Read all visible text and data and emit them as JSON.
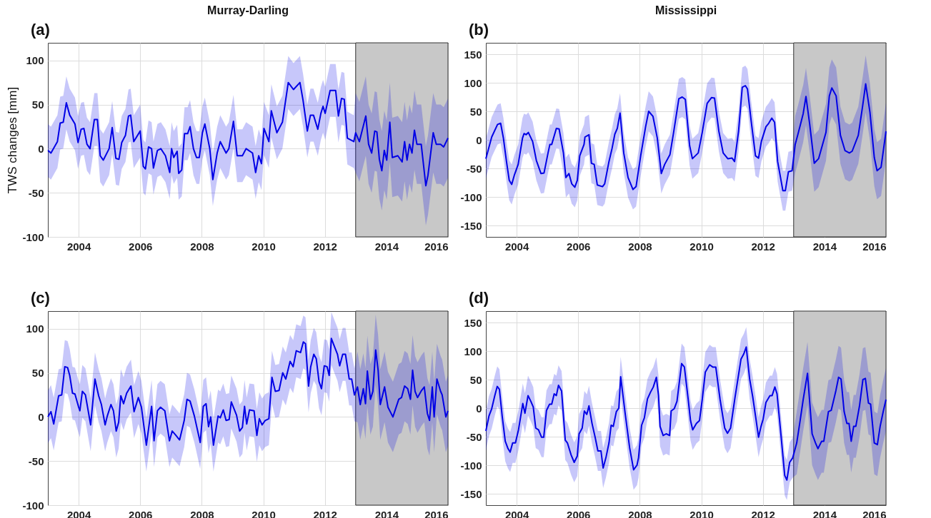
{
  "chart_data": [
    {
      "type": "line",
      "title": "Murray-Darling",
      "ylabel": "TWS changes [mm]",
      "annotations": [
        "(a)"
      ],
      "xlim": [
        2003,
        2016
      ],
      "xticks": [
        2004,
        2006,
        2008,
        2010,
        2012,
        2014,
        2016
      ],
      "ylim": [
        -100,
        120
      ],
      "yticks": [
        -100,
        -50,
        0,
        50,
        100
      ],
      "grid": true,
      "bands": [
        {
          "axis": "x",
          "from": 2013,
          "to": 2016,
          "color": "#c8c8c8"
        }
      ],
      "series": [
        {
          "color": "#0000e6",
          "x": [
            2003.0,
            2003.1,
            2003.31,
            2003.4,
            2003.5,
            2003.6,
            2003.71,
            2003.88,
            2003.98,
            2004.08,
            2004.17,
            2004.27,
            2004.37,
            2004.51,
            2004.61,
            2004.7,
            2004.8,
            2004.99,
            2005.09,
            2005.21,
            2005.31,
            2005.4,
            2005.52,
            2005.62,
            2005.69,
            2005.79,
            2006.0,
            2006.1,
            2006.17,
            2006.27,
            2006.37,
            2006.43,
            2006.56,
            2006.67,
            2006.82,
            2006.96,
            2007.02,
            2007.09,
            2007.2,
            2007.25,
            2007.35,
            2007.44,
            2007.54,
            2007.62,
            2007.73,
            2007.83,
            2007.92,
            2008.02,
            2008.1,
            2008.26,
            2008.36,
            2008.5,
            2008.6,
            2008.79,
            2008.88,
            2009.03,
            2009.15,
            2009.32,
            2009.44,
            2009.65,
            2009.75,
            2009.85,
            2009.94,
            2010.02,
            2010.18,
            2010.26,
            2010.44,
            2010.62,
            2010.81,
            2010.98,
            2011.19,
            2011.29,
            2011.43,
            2011.53,
            2011.63,
            2011.77,
            2011.87,
            2011.94,
            2012.01,
            2012.17,
            2012.35,
            2012.44,
            2012.54,
            2012.63,
            2012.73,
            2012.94,
            2013.0,
            2013.12,
            2013.33,
            2013.42,
            2013.52,
            2013.62,
            2013.69,
            2013.77,
            2013.85,
            2013.93,
            2014.01,
            2014.11,
            2014.19,
            2014.37,
            2014.51,
            2014.59,
            2014.67,
            2014.75,
            2014.83,
            2014.91,
            2014.99,
            2015.13,
            2015.28,
            2015.35,
            2015.52,
            2015.62,
            2015.76,
            2015.86,
            2016.0
          ],
          "values": [
            -2,
            -5,
            8,
            29,
            30,
            52,
            38,
            28,
            7,
            22,
            23,
            5,
            0,
            33,
            33,
            -8,
            -13,
            0,
            24,
            -11,
            -12,
            7,
            15,
            37,
            38,
            8,
            20,
            -20,
            -23,
            2,
            0,
            -22,
            -2,
            0,
            -8,
            -27,
            0,
            -10,
            -3,
            -28,
            -24,
            17,
            17,
            25,
            0,
            -10,
            -10,
            18,
            28,
            0,
            -35,
            -5,
            8,
            -5,
            0,
            31,
            -8,
            -8,
            0,
            -5,
            -27,
            -8,
            -17,
            23,
            8,
            43,
            18,
            30,
            75,
            67,
            75,
            55,
            20,
            38,
            38,
            22,
            40,
            48,
            40,
            66,
            66,
            37,
            57,
            56,
            12,
            8,
            18,
            8,
            37,
            5,
            -5,
            20,
            19,
            -12,
            -25,
            -2,
            -13,
            30,
            -10,
            -8,
            -15,
            8,
            -13,
            5,
            -5,
            21,
            5,
            5,
            -42,
            -30,
            18,
            5,
            5,
            2,
            12
          ],
          "lower": [
            -32,
            -35,
            -22,
            -1,
            0,
            22,
            8,
            -2,
            -23,
            -8,
            -7,
            -25,
            -30,
            3,
            3,
            -38,
            -43,
            -30,
            -6,
            -41,
            -42,
            -23,
            -15,
            7,
            8,
            -22,
            -10,
            -50,
            -53,
            -28,
            -30,
            -52,
            -32,
            -30,
            -38,
            -57,
            -30,
            -40,
            -33,
            -58,
            -54,
            -13,
            -13,
            -5,
            -30,
            -40,
            -40,
            -12,
            -2,
            -30,
            -65,
            -35,
            -22,
            -35,
            -30,
            1,
            -38,
            -38,
            -30,
            -35,
            -57,
            -38,
            -47,
            -7,
            -22,
            13,
            -12,
            0,
            45,
            37,
            45,
            25,
            -10,
            8,
            8,
            -8,
            10,
            18,
            10,
            36,
            36,
            7,
            27,
            26,
            -18,
            -22,
            -27,
            -37,
            -8,
            -40,
            -50,
            -25,
            -26,
            -57,
            -70,
            -47,
            -58,
            -15,
            -55,
            -53,
            -60,
            -37,
            -58,
            -40,
            -50,
            -24,
            -40,
            -40,
            -87,
            -75,
            -27,
            -40,
            -40,
            -43,
            -33
          ],
          "upper": [
            28,
            25,
            38,
            59,
            60,
            82,
            68,
            58,
            37,
            52,
            53,
            35,
            30,
            63,
            63,
            22,
            17,
            30,
            54,
            19,
            18,
            37,
            45,
            67,
            68,
            38,
            50,
            10,
            7,
            32,
            30,
            8,
            28,
            30,
            22,
            3,
            30,
            20,
            27,
            2,
            6,
            47,
            47,
            55,
            30,
            20,
            20,
            48,
            58,
            30,
            -5,
            25,
            38,
            25,
            30,
            61,
            22,
            22,
            30,
            25,
            3,
            22,
            13,
            53,
            38,
            73,
            48,
            60,
            105,
            97,
            105,
            85,
            50,
            68,
            68,
            52,
            70,
            78,
            70,
            96,
            96,
            67,
            87,
            86,
            42,
            38,
            63,
            53,
            82,
            50,
            40,
            65,
            64,
            33,
            20,
            43,
            32,
            75,
            35,
            37,
            30,
            53,
            32,
            50,
            40,
            66,
            50,
            50,
            3,
            15,
            63,
            50,
            50,
            47,
            57
          ]
        }
      ]
    },
    {
      "type": "line",
      "title": "Mississippi",
      "annotations": [
        "(b)"
      ],
      "xlim": [
        2003,
        2016
      ],
      "xticks": [
        2004,
        2006,
        2008,
        2010,
        2012,
        2014,
        2016
      ],
      "ylim": [
        -170,
        170
      ],
      "yticks": [
        -150,
        -100,
        -50,
        0,
        50,
        100,
        150
      ],
      "grid": true,
      "bands": [
        {
          "axis": "x",
          "from": 2013,
          "to": 2016,
          "color": "#c8c8c8"
        }
      ],
      "series": [
        {
          "color": "#0000e6",
          "x": [
            2003.0,
            2003.19,
            2003.38,
            2003.48,
            2003.57,
            2003.67,
            2003.76,
            2003.84,
            2003.93,
            2004.05,
            2004.19,
            2004.24,
            2004.31,
            2004.38,
            2004.52,
            2004.64,
            2004.79,
            2004.89,
            2005.02,
            2005.08,
            2005.14,
            2005.29,
            2005.38,
            2005.52,
            2005.6,
            2005.7,
            2005.79,
            2005.89,
            2005.97,
            2006.05,
            2006.19,
            2006.22,
            2006.35,
            2006.43,
            2006.52,
            2006.62,
            2006.79,
            2006.86,
            2007.0,
            2007.1,
            2007.19,
            2007.27,
            2007.36,
            2007.48,
            2007.62,
            2007.78,
            2007.88,
            2008.03,
            2008.19,
            2008.29,
            2008.43,
            2008.57,
            2008.7,
            2008.81,
            2008.98,
            2009.1,
            2009.27,
            2009.38,
            2009.48,
            2009.62,
            2009.71,
            2009.9,
            2010.03,
            2010.19,
            2010.33,
            2010.43,
            2010.57,
            2010.71,
            2010.86,
            2011.0,
            2011.08,
            2011.21,
            2011.33,
            2011.43,
            2011.5,
            2011.62,
            2011.76,
            2011.86,
            2011.95,
            2012.1,
            2012.19,
            2012.29,
            2012.38,
            2012.48,
            2012.65,
            2012.73,
            2012.83,
            2012.95,
            2013.05,
            2013.14,
            2013.24,
            2013.31,
            2013.4,
            2013.52,
            2013.67,
            2013.81,
            2013.93,
            2014.05,
            2014.16,
            2014.24,
            2014.38,
            2014.52,
            2014.67,
            2014.81,
            2014.9,
            2015.1,
            2015.24,
            2015.34,
            2015.48,
            2015.62,
            2015.71,
            2015.84,
            2016.0
          ],
          "values": [
            -33,
            5,
            27,
            29,
            3,
            -38,
            -71,
            -78,
            -61,
            -43,
            3,
            11,
            9,
            13,
            -3,
            -36,
            -59,
            -58,
            -23,
            -8,
            -8,
            20,
            19,
            -23,
            -66,
            -59,
            -77,
            -83,
            -71,
            -28,
            -8,
            5,
            9,
            -41,
            -43,
            -79,
            -82,
            -77,
            -38,
            -15,
            10,
            20,
            47,
            -23,
            -66,
            -87,
            -82,
            -28,
            23,
            50,
            41,
            3,
            -59,
            -43,
            -26,
            13,
            72,
            75,
            71,
            -10,
            -33,
            -23,
            13,
            64,
            74,
            73,
            15,
            -23,
            -33,
            -32,
            -38,
            15,
            92,
            95,
            89,
            33,
            -28,
            -32,
            -3,
            23,
            29,
            38,
            31,
            -38,
            -89,
            -89,
            -56,
            -54,
            -8,
            10,
            31,
            46,
            76,
            28,
            -41,
            -33,
            -10,
            13,
            77,
            91,
            77,
            8,
            -19,
            -23,
            -20,
            8,
            59,
            98,
            48,
            -31,
            -54,
            -48,
            15
          ],
          "lower": [
            -68,
            -30,
            -8,
            -6,
            -32,
            -73,
            -106,
            -113,
            -96,
            -78,
            -32,
            -24,
            -26,
            -22,
            -38,
            -71,
            -94,
            -93,
            -58,
            -43,
            -43,
            -15,
            -16,
            -58,
            -101,
            -94,
            -112,
            -118,
            -106,
            -63,
            -43,
            -30,
            -26,
            -76,
            -78,
            -114,
            -117,
            -112,
            -73,
            -50,
            -25,
            -15,
            12,
            -58,
            -101,
            -122,
            -117,
            -63,
            -12,
            15,
            6,
            -32,
            -94,
            -78,
            -61,
            -22,
            37,
            40,
            36,
            -45,
            -68,
            -58,
            -22,
            29,
            39,
            38,
            -20,
            -58,
            -68,
            -67,
            -73,
            -20,
            57,
            60,
            54,
            -2,
            -63,
            -67,
            -38,
            -12,
            -6,
            3,
            -4,
            -73,
            -124,
            -124,
            -91,
            -89,
            -58,
            -40,
            -19,
            -4,
            26,
            -22,
            -91,
            -83,
            -60,
            -37,
            27,
            41,
            27,
            -42,
            -69,
            -73,
            -70,
            -42,
            9,
            48,
            -2,
            -81,
            -104,
            -98,
            -35
          ],
          "upper": [
            2,
            40,
            62,
            64,
            38,
            -3,
            -36,
            -43,
            -26,
            -8,
            38,
            46,
            44,
            48,
            32,
            -1,
            -24,
            -23,
            12,
            27,
            27,
            55,
            54,
            12,
            -31,
            -24,
            -42,
            -48,
            -36,
            7,
            27,
            40,
            44,
            -6,
            -8,
            -44,
            -47,
            -42,
            -3,
            20,
            45,
            55,
            82,
            12,
            -31,
            -52,
            -47,
            7,
            58,
            85,
            76,
            38,
            -24,
            -8,
            9,
            48,
            107,
            110,
            106,
            25,
            2,
            12,
            48,
            99,
            109,
            108,
            50,
            12,
            2,
            3,
            -3,
            50,
            127,
            130,
            124,
            68,
            7,
            3,
            32,
            58,
            64,
            73,
            66,
            -3,
            -54,
            -54,
            -21,
            -19,
            42,
            60,
            81,
            96,
            126,
            78,
            9,
            17,
            40,
            63,
            127,
            141,
            127,
            58,
            31,
            27,
            30,
            58,
            109,
            148,
            98,
            19,
            -4,
            2,
            65
          ]
        }
      ]
    },
    {
      "type": "line",
      "annotations": [
        "(c)"
      ],
      "xlim": [
        2003,
        2016
      ],
      "xticks": [
        2004,
        2006,
        2008,
        2010,
        2012,
        2014,
        2016
      ],
      "ylim": [
        -100,
        120
      ],
      "yticks": [
        -100,
        -50,
        0,
        50,
        100
      ],
      "grid": true,
      "bands": [
        {
          "axis": "x",
          "from": 2013,
          "to": 2016,
          "color": "#c8c8c8"
        }
      ],
      "series": [
        {
          "color": "#0000e6",
          "x": [
            2003.0,
            2003.1,
            2003.19,
            2003.35,
            2003.45,
            2003.55,
            2003.64,
            2003.71,
            2003.8,
            2003.88,
            2004.0,
            2004.04,
            2004.12,
            2004.22,
            2004.31,
            2004.39,
            2004.53,
            2004.65,
            2004.74,
            2004.86,
            2004.93,
            2005.05,
            2005.13,
            2005.22,
            2005.3,
            2005.37,
            2005.46,
            2005.56,
            2005.7,
            2005.8,
            2005.94,
            2006.04,
            2006.2,
            2006.37,
            2006.45,
            2006.56,
            2006.66,
            2006.8,
            2006.95,
            2007.04,
            2007.14,
            2007.28,
            2007.43,
            2007.52,
            2007.62,
            2007.76,
            2007.95,
            2008.05,
            2008.14,
            2008.22,
            2008.29,
            2008.38,
            2008.53,
            2008.6,
            2008.7,
            2008.79,
            2008.89,
            2008.96,
            2009.13,
            2009.23,
            2009.32,
            2009.39,
            2009.46,
            2009.55,
            2009.7,
            2009.79,
            2009.87,
            2009.96,
            2010.06,
            2010.18,
            2010.28,
            2010.39,
            2010.51,
            2010.63,
            2010.73,
            2010.87,
            2010.97,
            2011.07,
            2011.21,
            2011.3,
            2011.37,
            2011.47,
            2011.54,
            2011.64,
            2011.72,
            2011.81,
            2011.89,
            2011.98,
            2012.07,
            2012.14,
            2012.21,
            2012.33,
            2012.41,
            2012.48,
            2012.58,
            2012.67,
            2012.79,
            2012.87,
            2012.96,
            2013.06,
            2013.15,
            2013.25,
            2013.32,
            2013.38,
            2013.48,
            2013.56,
            2013.65,
            2013.73,
            2013.8,
            2013.94,
            2014.05,
            2014.21,
            2014.4,
            2014.49,
            2014.59,
            2014.69,
            2014.78,
            2014.85,
            2014.93,
            2015.01,
            2015.14,
            2015.23,
            2015.33,
            2015.4,
            2015.49,
            2015.55,
            2015.64,
            2015.76,
            2015.81,
            2015.93,
            2016.0
          ],
          "values": [
            0,
            6,
            -8,
            24,
            25,
            57,
            56,
            47,
            27,
            26,
            11,
            7,
            29,
            25,
            7,
            -9,
            43,
            24,
            14,
            -9,
            1,
            14,
            7,
            -16,
            -6,
            24,
            15,
            27,
            35,
            6,
            22,
            11,
            -32,
            12,
            -27,
            7,
            11,
            7,
            -27,
            -16,
            -20,
            -26,
            -4,
            20,
            18,
            1,
            -29,
            12,
            15,
            -11,
            0,
            -32,
            1,
            -1,
            8,
            -4,
            -3,
            17,
            2,
            -16,
            -12,
            12,
            -8,
            8,
            7,
            -21,
            -2,
            -9,
            -4,
            -2,
            45,
            29,
            30,
            50,
            43,
            63,
            57,
            75,
            73,
            85,
            83,
            35,
            57,
            71,
            66,
            40,
            32,
            58,
            57,
            47,
            89,
            78,
            71,
            58,
            71,
            71,
            43,
            43,
            25,
            34,
            14,
            32,
            15,
            52,
            20,
            29,
            76,
            53,
            14,
            34,
            11,
            0,
            20,
            22,
            35,
            32,
            20,
            53,
            29,
            22,
            30,
            34,
            4,
            -4,
            34,
            0,
            43,
            29,
            25,
            0,
            7
          ],
          "lower": [
            -30,
            -24,
            -38,
            -6,
            -5,
            27,
            26,
            17,
            -3,
            -4,
            -19,
            -23,
            -1,
            -5,
            -23,
            -39,
            13,
            -6,
            -16,
            -39,
            -29,
            -16,
            -23,
            -46,
            -36,
            -6,
            -15,
            -3,
            5,
            -24,
            -8,
            -19,
            -62,
            -18,
            -57,
            -23,
            -19,
            -23,
            -57,
            -46,
            -50,
            -56,
            -34,
            -10,
            -12,
            -29,
            -59,
            -18,
            -15,
            -41,
            -30,
            -62,
            -29,
            -31,
            -22,
            -34,
            -33,
            -13,
            -28,
            -46,
            -42,
            -18,
            -38,
            -22,
            -23,
            -51,
            -32,
            -39,
            -34,
            -32,
            15,
            -1,
            0,
            20,
            13,
            33,
            27,
            45,
            43,
            55,
            53,
            5,
            27,
            41,
            36,
            10,
            2,
            28,
            27,
            17,
            59,
            48,
            41,
            28,
            41,
            41,
            13,
            13,
            -5,
            -6,
            -26,
            -8,
            -25,
            12,
            -20,
            -11,
            36,
            13,
            -26,
            -6,
            -29,
            -40,
            -20,
            -18,
            -5,
            -8,
            -20,
            13,
            -11,
            -18,
            -10,
            -6,
            -36,
            -44,
            -6,
            -40,
            3,
            -11,
            -15,
            -40,
            -33
          ],
          "upper": [
            30,
            36,
            22,
            54,
            55,
            87,
            86,
            77,
            57,
            56,
            41,
            37,
            59,
            55,
            37,
            21,
            73,
            54,
            44,
            21,
            31,
            44,
            37,
            14,
            24,
            54,
            45,
            57,
            65,
            36,
            52,
            41,
            -2,
            42,
            3,
            37,
            41,
            37,
            3,
            14,
            10,
            4,
            26,
            50,
            48,
            31,
            1,
            42,
            45,
            19,
            30,
            -2,
            31,
            29,
            38,
            26,
            27,
            47,
            32,
            14,
            18,
            42,
            22,
            38,
            37,
            9,
            28,
            21,
            26,
            28,
            75,
            59,
            60,
            80,
            73,
            93,
            87,
            105,
            103,
            115,
            113,
            65,
            87,
            101,
            96,
            70,
            62,
            88,
            87,
            77,
            119,
            108,
            101,
            88,
            101,
            101,
            73,
            73,
            55,
            74,
            54,
            72,
            55,
            92,
            60,
            69,
            116,
            93,
            54,
            74,
            51,
            40,
            60,
            62,
            75,
            72,
            60,
            93,
            69,
            62,
            70,
            74,
            44,
            36,
            74,
            40,
            83,
            69,
            65,
            40,
            47
          ]
        }
      ]
    },
    {
      "type": "line",
      "annotations": [
        "(d)"
      ],
      "xlim": [
        2003,
        2016
      ],
      "xticks": [
        2004,
        2006,
        2008,
        2010,
        2012,
        2014,
        2016
      ],
      "ylim": [
        -170,
        170
      ],
      "yticks": [
        -150,
        -100,
        -50,
        0,
        50,
        100,
        150
      ],
      "grid": true,
      "bands": [
        {
          "axis": "x",
          "from": 2013,
          "to": 2016,
          "color": "#c8c8c8"
        }
      ],
      "series": [
        {
          "color": "#0000e6",
          "x": [
            2003.0,
            2003.1,
            2003.19,
            2003.29,
            2003.37,
            2003.44,
            2003.53,
            2003.63,
            2003.72,
            2003.79,
            2003.87,
            2003.96,
            2004.06,
            2004.2,
            2004.27,
            2004.37,
            2004.46,
            2004.54,
            2004.62,
            2004.71,
            2004.81,
            2004.88,
            2004.97,
            2005.07,
            2005.14,
            2005.22,
            2005.29,
            2005.36,
            2005.46,
            2005.58,
            2005.65,
            2005.77,
            2005.87,
            2005.97,
            2006.03,
            2006.13,
            2006.2,
            2006.28,
            2006.35,
            2006.45,
            2006.55,
            2006.64,
            2006.74,
            2006.81,
            2006.9,
            2007.0,
            2007.07,
            2007.14,
            2007.24,
            2007.32,
            2007.38,
            2007.53,
            2007.67,
            2007.8,
            2007.91,
            2007.96,
            2008.06,
            2008.15,
            2008.25,
            2008.35,
            2008.44,
            2008.54,
            2008.61,
            2008.66,
            2008.76,
            2008.86,
            2008.97,
            2009.02,
            2009.12,
            2009.21,
            2009.36,
            2009.45,
            2009.57,
            2009.65,
            2009.72,
            2009.84,
            2009.94,
            2010.03,
            2010.13,
            2010.27,
            2010.37,
            2010.47,
            2010.61,
            2010.76,
            2010.85,
            2010.95,
            2011.09,
            2011.29,
            2011.38,
            2011.46,
            2011.57,
            2011.67,
            2011.77,
            2011.86,
            2011.94,
            2012.01,
            2012.1,
            2012.23,
            2012.3,
            2012.39,
            2012.46,
            2012.59,
            2012.71,
            2012.78,
            2012.87,
            2012.97,
            2013.1,
            2013.21,
            2013.31,
            2013.45,
            2013.6,
            2013.71,
            2013.79,
            2013.91,
            2013.98,
            2014.13,
            2014.22,
            2014.37,
            2014.46,
            2014.54,
            2014.64,
            2014.73,
            2014.8,
            2014.87,
            2014.95,
            2015.02,
            2015.14,
            2015.25,
            2015.33,
            2015.43,
            2015.5,
            2015.62,
            2015.72,
            2015.81,
            2015.91,
            2016.0
          ],
          "values": [
            -40,
            -14,
            -1,
            22,
            38,
            33,
            -14,
            -58,
            -71,
            -77,
            -61,
            -61,
            -38,
            8,
            -9,
            22,
            12,
            2,
            -35,
            -38,
            -51,
            -51,
            -4,
            7,
            7,
            25,
            22,
            40,
            30,
            -56,
            -61,
            -82,
            -95,
            -84,
            -45,
            -35,
            -5,
            -11,
            4,
            -27,
            -51,
            -75,
            -75,
            -105,
            -87,
            -61,
            -30,
            -32,
            -6,
            0,
            55,
            -11,
            -69,
            -108,
            -100,
            -87,
            -30,
            -17,
            16,
            28,
            37,
            54,
            22,
            -32,
            -48,
            -45,
            -48,
            -5,
            -1,
            12,
            78,
            72,
            17,
            -22,
            -38,
            -27,
            -22,
            15,
            63,
            76,
            72,
            72,
            15,
            -35,
            -44,
            -35,
            17,
            86,
            95,
            107,
            51,
            20,
            -17,
            -51,
            -32,
            -19,
            10,
            22,
            22,
            37,
            25,
            -48,
            -118,
            -126,
            -95,
            -87,
            -61,
            -22,
            15,
            61,
            -45,
            -61,
            -71,
            -58,
            -58,
            -6,
            -4,
            30,
            54,
            51,
            -6,
            -27,
            -27,
            -58,
            -32,
            -32,
            4,
            50,
            52,
            9,
            7,
            -61,
            -64,
            -32,
            -6,
            15
          ],
          "lower": [
            -75,
            -49,
            -36,
            -13,
            3,
            -2,
            -49,
            -93,
            -106,
            -112,
            -96,
            -96,
            -73,
            -27,
            -44,
            -13,
            -23,
            -33,
            -70,
            -73,
            -86,
            -86,
            -39,
            -28,
            -28,
            -10,
            -13,
            5,
            -5,
            -91,
            -96,
            -117,
            -130,
            -119,
            -80,
            -70,
            -40,
            -46,
            -31,
            -62,
            -86,
            -110,
            -110,
            -140,
            -122,
            -96,
            -65,
            -67,
            -41,
            -35,
            20,
            -46,
            -104,
            -143,
            -135,
            -122,
            -65,
            -52,
            -19,
            -7,
            2,
            19,
            -13,
            -67,
            -83,
            -80,
            -83,
            -40,
            -36,
            -23,
            43,
            37,
            -18,
            -57,
            -73,
            -62,
            -57,
            -20,
            28,
            41,
            37,
            37,
            -20,
            -70,
            -79,
            -70,
            -18,
            51,
            60,
            72,
            16,
            -15,
            -52,
            -86,
            -67,
            -54,
            -25,
            -13,
            -13,
            2,
            -10,
            -83,
            -153,
            -161,
            -130,
            -122,
            -116,
            -77,
            -40,
            6,
            -100,
            -116,
            -126,
            -113,
            -113,
            -61,
            -59,
            -25,
            -1,
            -4,
            -61,
            -82,
            -82,
            -113,
            -87,
            -87,
            -51,
            -5,
            -3,
            -46,
            -48,
            -116,
            -119,
            -87,
            -61,
            -40
          ],
          "upper": [
            -5,
            21,
            34,
            57,
            73,
            68,
            21,
            -23,
            -36,
            -42,
            -26,
            -26,
            -3,
            43,
            26,
            57,
            47,
            37,
            0,
            -3,
            -16,
            -16,
            31,
            42,
            42,
            60,
            57,
            75,
            65,
            -21,
            -26,
            -47,
            -60,
            -49,
            -10,
            0,
            30,
            24,
            39,
            8,
            -16,
            -40,
            -40,
            -70,
            -52,
            -26,
            5,
            3,
            29,
            35,
            90,
            24,
            -34,
            -73,
            -65,
            -52,
            5,
            18,
            51,
            63,
            72,
            89,
            57,
            3,
            -13,
            -10,
            -13,
            30,
            34,
            47,
            113,
            107,
            52,
            13,
            -3,
            8,
            13,
            50,
            98,
            111,
            107,
            107,
            50,
            0,
            -9,
            0,
            52,
            121,
            130,
            142,
            86,
            55,
            18,
            -16,
            3,
            16,
            45,
            57,
            57,
            72,
            60,
            -13,
            -83,
            -91,
            -60,
            -52,
            -6,
            33,
            70,
            116,
            10,
            -6,
            -16,
            -3,
            -3,
            49,
            51,
            85,
            109,
            106,
            49,
            28,
            28,
            -3,
            23,
            23,
            59,
            105,
            107,
            64,
            62,
            -6,
            -9,
            23,
            49,
            70
          ]
        }
      ]
    }
  ]
}
